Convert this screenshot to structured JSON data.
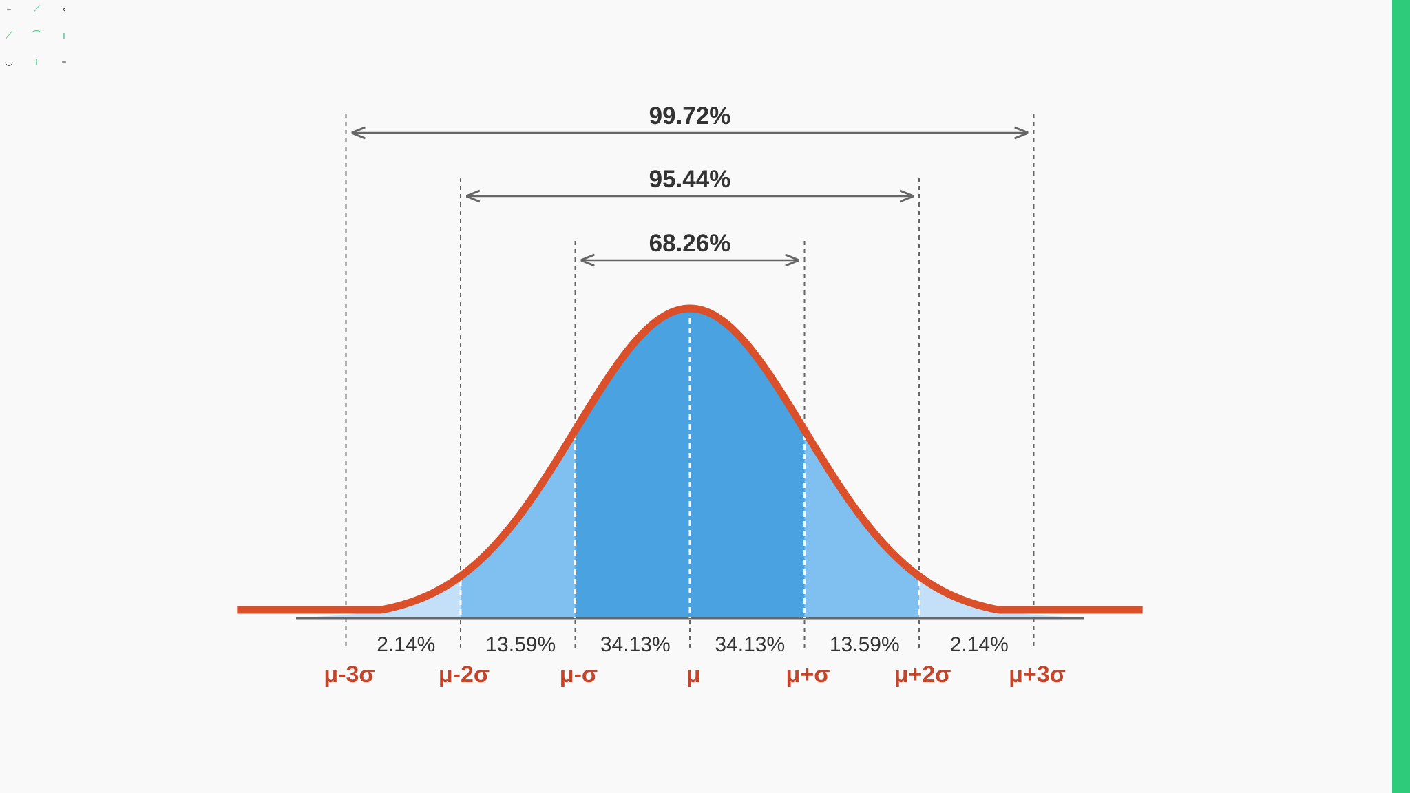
{
  "colors": {
    "background": "#f9f9f9",
    "curve": "#d9502a",
    "fill_dark": "#4aa2e0",
    "fill_mid": "#7fc0f1",
    "fill_light": "#c3e0f8",
    "text_dark": "#333333",
    "label_red": "#c4452a",
    "line_gray": "#666666",
    "side_strip": "#2ecc7a",
    "glyph_green": "#2ecc7a",
    "glyph_dark": "#222222"
  },
  "ranges": [
    {
      "label": "99.72%",
      "sigma": 3
    },
    {
      "label": "95.44%",
      "sigma": 2
    },
    {
      "label": "68.26%",
      "sigma": 1
    }
  ],
  "segments": [
    {
      "label": "2.14%",
      "from": -3,
      "to": -2
    },
    {
      "label": "13.59%",
      "from": -2,
      "to": -1
    },
    {
      "label": "34.13%",
      "from": -1,
      "to": 0
    },
    {
      "label": "34.13%",
      "from": 0,
      "to": 1
    },
    {
      "label": "13.59%",
      "from": 1,
      "to": 2
    },
    {
      "label": "2.14%",
      "from": 2,
      "to": 3
    }
  ],
  "sigma_labels": [
    {
      "label": "μ-3σ",
      "sigma": -3
    },
    {
      "label": "μ-2σ",
      "sigma": -2
    },
    {
      "label": "μ-σ",
      "sigma": -1
    },
    {
      "label": "μ",
      "sigma": 0
    },
    {
      "label": "μ+σ",
      "sigma": 1
    },
    {
      "label": "μ+2σ",
      "sigma": 2
    },
    {
      "label": "μ+3σ",
      "sigma": 3
    }
  ],
  "corner_glyphs": [
    {
      "glyph": "–",
      "color": "dark"
    },
    {
      "glyph": "⟋",
      "color": "green"
    },
    {
      "glyph": "‹",
      "color": "dark"
    },
    {
      "glyph": "⟋",
      "color": "green"
    },
    {
      "glyph": "⌒",
      "color": "green"
    },
    {
      "glyph": "ı",
      "color": "green"
    },
    {
      "glyph": "◡",
      "color": "dark"
    },
    {
      "glyph": "ı",
      "color": "green"
    },
    {
      "glyph": "–",
      "color": "dark"
    }
  ]
}
